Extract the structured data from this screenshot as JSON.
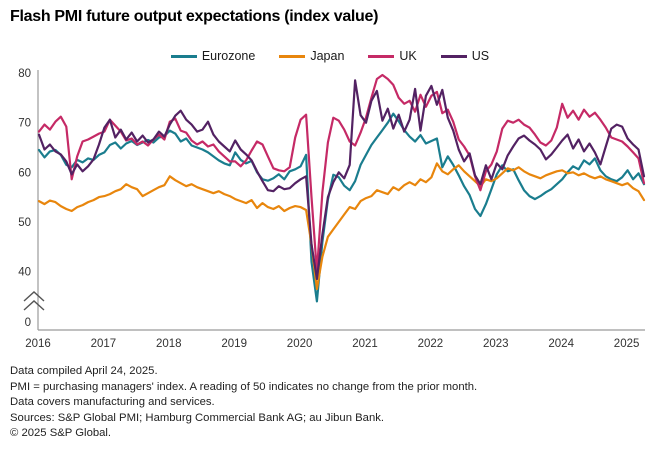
{
  "title": "Flash PMI future output expectations (index value)",
  "footnotes": {
    "line1": "Data compiled April 24, 2025.",
    "line2": "PMI = purchasing managers' index. A reading of 50 indicates no change from the prior month.",
    "line3": "Data covers manufacturing and services.",
    "line4": "Sources: S&P Global PMI; Hamburg Commercial Bank AG; au Jibun Bank.",
    "line5": "© 2025 S&P Global."
  },
  "colors": {
    "eurozone": "#1a7d8e",
    "japan": "#e8860d",
    "uk": "#c52a66",
    "us": "#532263",
    "axis": "#9b9b9b",
    "tick_text": "#333333"
  },
  "chart_data": {
    "type": "line",
    "title": "Flash PMI future output expectations (index value)",
    "x_unit": "month",
    "x_start": "2016-01",
    "x_end": "2025-04",
    "x_tick_labels": [
      "2016",
      "2017",
      "2018",
      "2019",
      "2020",
      "2021",
      "2022",
      "2023",
      "2024",
      "2025"
    ],
    "y_ticks": [
      0,
      40,
      50,
      60,
      70,
      80
    ],
    "y_axis_break_between": [
      0,
      40
    ],
    "ylim_plot": [
      33,
      80
    ],
    "grid": false,
    "legend_position": "top-center",
    "series": [
      {
        "name": "Eurozone",
        "color": "#1a7d8e",
        "values": [
          64.5,
          63.0,
          64.2,
          64.5,
          63.5,
          61.5,
          61.0,
          62.5,
          62.0,
          62.8,
          62.5,
          63.5,
          64.0,
          65.5,
          66.0,
          64.8,
          65.8,
          66.3,
          65.5,
          66.0,
          66.5,
          66.0,
          67.0,
          67.3,
          68.4,
          67.8,
          66.2,
          66.8,
          65.4,
          65.0,
          64.6,
          64.0,
          63.2,
          62.4,
          61.8,
          61.4,
          64.0,
          62.5,
          61.8,
          62.3,
          60.0,
          58.6,
          58.3,
          58.8,
          59.6,
          58.6,
          60.2,
          60.6,
          61.2,
          63.5,
          42.0,
          34.0,
          46.0,
          54.5,
          59.5,
          59.0,
          57.3,
          56.4,
          58.2,
          61.5,
          63.5,
          65.5,
          67.0,
          68.5,
          70.0,
          71.8,
          70.3,
          68.5,
          67.2,
          66.2,
          67.5,
          65.8,
          66.3,
          66.8,
          61.0,
          63.2,
          61.5,
          59.4,
          57.2,
          55.4,
          52.6,
          51.2,
          53.6,
          56.6,
          59.6,
          61.4,
          60.2,
          60.6,
          58.4,
          56.4,
          55.2,
          54.6,
          55.2,
          56.0,
          56.6,
          57.6,
          58.6,
          60.0,
          61.2,
          60.6,
          62.4,
          61.6,
          62.8,
          60.4,
          59.2,
          58.6,
          58.2,
          59.0,
          60.4,
          58.6,
          59.8,
          57.6
        ]
      },
      {
        "name": "Japan",
        "color": "#e8860d",
        "values": [
          54.2,
          53.6,
          54.3,
          54.0,
          53.2,
          52.6,
          52.2,
          53.0,
          53.4,
          54.0,
          54.4,
          55.0,
          55.2,
          55.6,
          56.2,
          56.6,
          57.6,
          57.0,
          56.6,
          55.2,
          55.8,
          56.4,
          57.0,
          57.4,
          59.2,
          58.4,
          57.8,
          57.2,
          57.6,
          57.0,
          56.6,
          56.2,
          55.8,
          56.2,
          55.6,
          55.2,
          54.6,
          54.2,
          53.8,
          54.4,
          52.8,
          53.8,
          53.0,
          52.6,
          53.2,
          52.2,
          52.8,
          53.2,
          53.0,
          52.4,
          45.5,
          36.5,
          43.0,
          47.0,
          48.5,
          50.0,
          51.5,
          53.0,
          52.6,
          54.2,
          54.8,
          55.2,
          56.4,
          56.0,
          55.6,
          57.0,
          56.4,
          57.4,
          58.0,
          57.4,
          58.6,
          58.0,
          59.0,
          61.8,
          60.2,
          59.6,
          60.6,
          61.4,
          60.2,
          59.2,
          58.2,
          57.2,
          58.6,
          58.2,
          58.8,
          59.8,
          60.8,
          60.4,
          61.0,
          60.2,
          59.6,
          59.2,
          58.8,
          59.4,
          59.8,
          60.2,
          60.4,
          59.8,
          60.0,
          59.4,
          59.8,
          59.2,
          58.8,
          59.2,
          58.6,
          58.2,
          57.8,
          57.4,
          57.8,
          56.8,
          56.2,
          54.4
        ]
      },
      {
        "name": "UK",
        "color": "#c52a66",
        "values": [
          68.2,
          69.6,
          68.6,
          70.2,
          71.2,
          69.2,
          58.6,
          63.2,
          66.2,
          66.6,
          67.2,
          67.8,
          68.2,
          70.6,
          69.4,
          68.2,
          66.4,
          66.8,
          65.6,
          66.2,
          65.4,
          66.6,
          67.6,
          66.6,
          70.2,
          70.8,
          68.4,
          68.0,
          66.4,
          65.6,
          66.2,
          65.2,
          65.6,
          64.2,
          63.2,
          62.2,
          62.2,
          61.2,
          62.4,
          64.4,
          66.2,
          65.6,
          63.2,
          60.8,
          60.4,
          60.2,
          61.0,
          67.0,
          70.6,
          71.6,
          55.0,
          40.0,
          56.0,
          66.0,
          71.0,
          70.4,
          68.6,
          66.2,
          65.4,
          68.0,
          71.0,
          75.0,
          78.8,
          79.6,
          78.8,
          77.6,
          75.0,
          73.8,
          74.4,
          72.2,
          75.6,
          73.2,
          75.4,
          76.2,
          71.9,
          72.6,
          70.2,
          66.6,
          65.2,
          63.4,
          59.2,
          56.4,
          60.2,
          61.6,
          64.2,
          68.8,
          70.4,
          70.0,
          70.6,
          69.6,
          69.0,
          67.6,
          66.0,
          65.4,
          66.4,
          69.0,
          73.8,
          71.0,
          72.4,
          70.6,
          72.6,
          71.2,
          72.0,
          70.6,
          69.0,
          67.0,
          66.6,
          66.2,
          65.2,
          64.0,
          62.8,
          57.8
        ]
      },
      {
        "name": "US",
        "color": "#532263",
        "values": [
          67.6,
          64.6,
          65.6,
          64.2,
          63.6,
          62.2,
          59.6,
          61.6,
          60.2,
          61.2,
          62.6,
          65.6,
          69.0,
          70.6,
          67.0,
          68.6,
          66.6,
          68.0,
          66.2,
          67.4,
          66.0,
          66.6,
          68.2,
          67.2,
          69.6,
          71.4,
          72.4,
          70.6,
          69.6,
          68.2,
          68.6,
          70.2,
          67.6,
          66.2,
          65.2,
          64.2,
          66.4,
          64.6,
          63.6,
          62.4,
          60.2,
          58.2,
          56.4,
          56.2,
          57.2,
          56.6,
          56.8,
          57.8,
          58.6,
          59.2,
          45.5,
          38.5,
          47.5,
          55.0,
          58.0,
          60.0,
          58.8,
          61.5,
          78.5,
          71.5,
          70.0,
          74.4,
          76.4,
          70.4,
          72.8,
          68.8,
          71.6,
          68.2,
          70.6,
          76.8,
          68.4,
          75.4,
          77.4,
          73.6,
          76.6,
          71.0,
          68.4,
          64.6,
          62.2,
          63.8,
          59.4,
          57.6,
          61.4,
          58.6,
          61.8,
          60.6,
          63.4,
          65.2,
          66.8,
          67.4,
          66.4,
          65.6,
          64.6,
          62.6,
          63.6,
          65.0,
          66.4,
          67.6,
          64.8,
          66.6,
          64.2,
          65.8,
          64.0,
          61.6,
          65.2,
          68.8,
          69.6,
          69.2,
          66.8,
          65.6,
          64.6,
          59.2
        ]
      }
    ]
  }
}
